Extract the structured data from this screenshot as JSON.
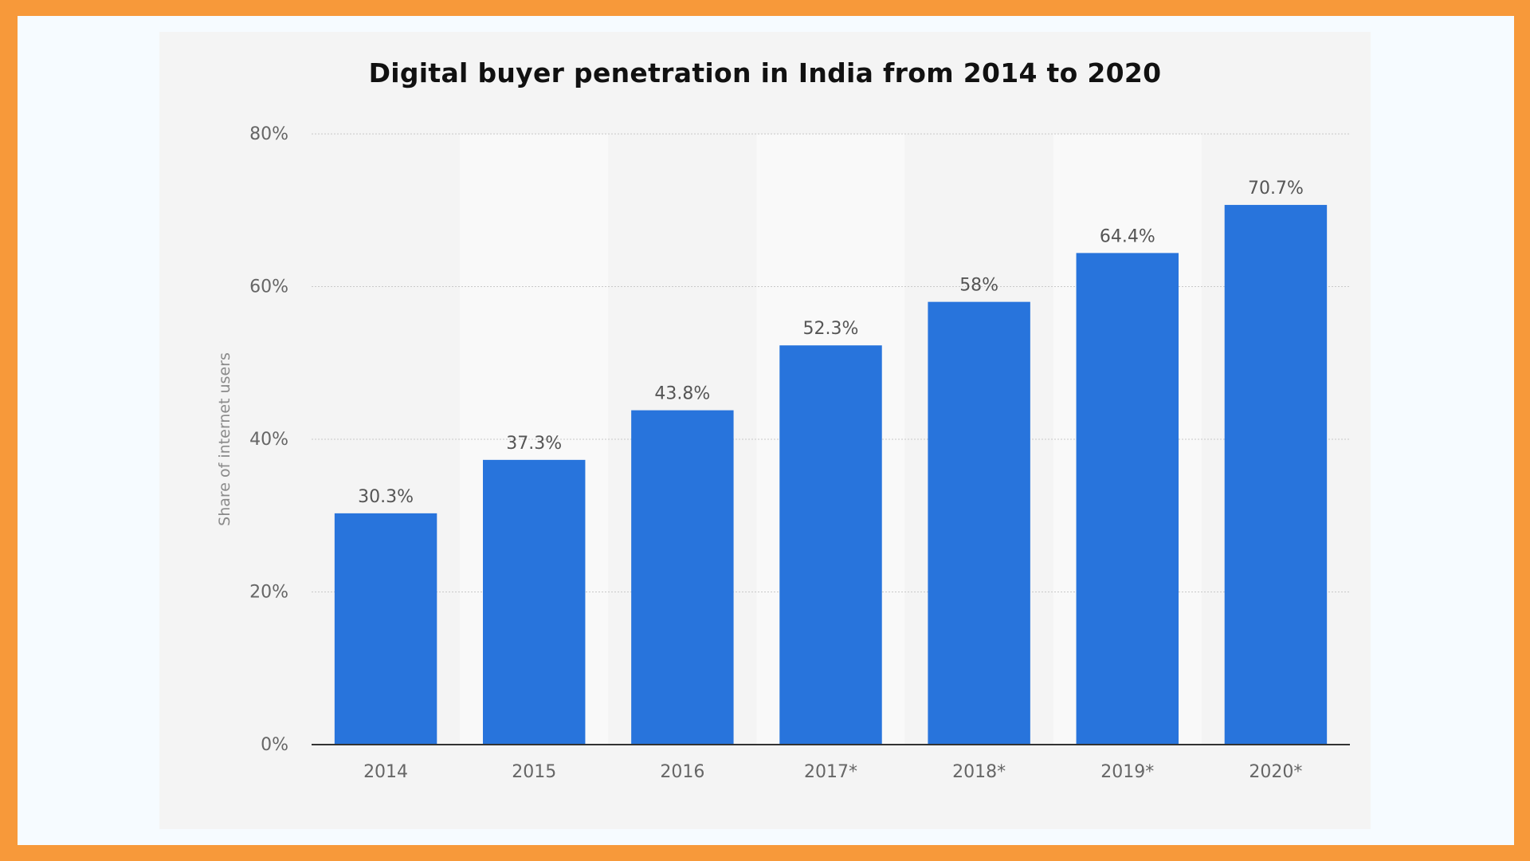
{
  "colors": {
    "border": "#f7993a",
    "bar": "#2874dc",
    "panel": "#f4f4f4"
  },
  "chart_data": {
    "type": "bar",
    "title": "Digital buyer penetration in India from 2014 to 2020",
    "xlabel": "",
    "ylabel": "Share of internet users",
    "categories": [
      "2014",
      "2015",
      "2016",
      "2017*",
      "2018*",
      "2019*",
      "2020*"
    ],
    "values": [
      30.3,
      37.3,
      43.8,
      52.3,
      58,
      64.4,
      70.7
    ],
    "data_labels": [
      "30.3%",
      "37.3%",
      "43.8%",
      "52.3%",
      "58%",
      "64.4%",
      "70.7%"
    ],
    "ylim": [
      0,
      80
    ],
    "yticks": [
      0,
      20,
      40,
      60,
      80
    ],
    "ytick_labels": [
      "0%",
      "20%",
      "40%",
      "60%",
      "80%"
    ],
    "grid": true,
    "legend": "none"
  }
}
